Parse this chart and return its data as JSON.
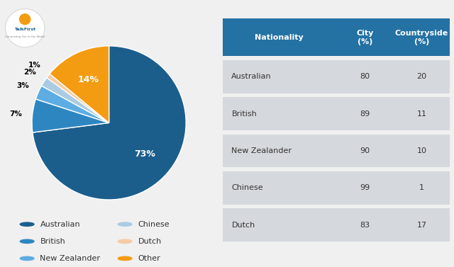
{
  "pie_labels": [
    "Australian",
    "British",
    "New Zealander",
    "Chinese",
    "Dutch",
    "Other"
  ],
  "pie_values": [
    73,
    7,
    3,
    2,
    1,
    14
  ],
  "pie_colors": [
    "#1b5e8c",
    "#2e86c1",
    "#5dade2",
    "#a9cce3",
    "#f5cba7",
    "#f39c12"
  ],
  "pie_pct_labels": [
    "73%",
    "7%",
    "3%",
    "2%",
    "1%",
    "14%"
  ],
  "legend_labels": [
    "Australian",
    "Chinese",
    "British",
    "Dutch",
    "New Zealander",
    "Other"
  ],
  "legend_colors": [
    "#1b5e8c",
    "#a9cce3",
    "#2e86c1",
    "#f5cba7",
    "#5dade2",
    "#f39c12"
  ],
  "table_header": [
    "Nationality",
    "City\n(%)",
    "Countryside\n(%)"
  ],
  "table_rows": [
    [
      "Australian",
      "80",
      "20"
    ],
    [
      "British",
      "89",
      "11"
    ],
    [
      "New Zealander",
      "90",
      "10"
    ],
    [
      "Chinese",
      "99",
      "1"
    ],
    [
      "Dutch",
      "83",
      "17"
    ]
  ],
  "table_header_color": "#2471a3",
  "table_row_color": "#d5d8dc",
  "table_gap_color": "#f0f0f0",
  "bg_color": "#f0f0f0"
}
